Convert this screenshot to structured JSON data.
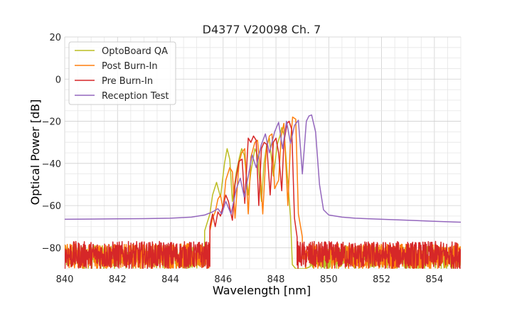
{
  "chart_data": {
    "type": "line",
    "title": "D4377 V20098 Ch. 7",
    "xlabel": "Wavelength [nm]",
    "ylabel": "Optical Power [dB]",
    "xlim": [
      840,
      855
    ],
    "ylim": [
      -90,
      20
    ],
    "xticks": [
      840,
      842,
      844,
      846,
      848,
      850,
      852,
      854
    ],
    "yticks": [
      -80,
      -60,
      -40,
      -20,
      0,
      20
    ],
    "xtick_labels": [
      "840",
      "842",
      "844",
      "846",
      "848",
      "850",
      "852",
      "854"
    ],
    "ytick_labels": [
      "−80",
      "−60",
      "−40",
      "−20",
      "0",
      "20"
    ],
    "grid": true,
    "legend_position": "top-left",
    "series": [
      {
        "name": "OptoBoard QA",
        "color": "#bcbd22",
        "noise": {
          "x_start": 840.0,
          "x_end": 855.0,
          "gap": [
            845.3,
            849.3
          ],
          "base": -90,
          "max": -79
        },
        "x": [
          845.3,
          845.5,
          845.6,
          845.75,
          845.9,
          846.05,
          846.15,
          846.25,
          846.35,
          846.5,
          846.62,
          846.7,
          846.8,
          846.95,
          847.05,
          847.13,
          847.2,
          847.3,
          847.45,
          847.55,
          847.65,
          847.75,
          847.9,
          848.05,
          848.15,
          848.22,
          848.32,
          848.45,
          848.55,
          848.62,
          848.75,
          848.9,
          849.1,
          849.3
        ],
        "values": [
          -72,
          -64,
          -55,
          -49,
          -56,
          -40,
          -33,
          -38,
          -58,
          -44,
          -37,
          -33,
          -36,
          -55,
          -44,
          -38,
          -33,
          -36,
          -58,
          -40,
          -31,
          -28,
          -46,
          -31,
          -27,
          -23,
          -27,
          -49,
          -65,
          -88,
          -90,
          -90,
          -90,
          -89
        ]
      },
      {
        "name": "Post Burn-In",
        "color": "#ff7f0e",
        "noise": {
          "x_start": 840.0,
          "x_end": 855.0,
          "gap": [
            845.5,
            849.0
          ],
          "base": -90,
          "max": -78
        },
        "x": [
          845.5,
          845.6,
          845.7,
          845.8,
          845.9,
          846.0,
          846.1,
          846.25,
          846.35,
          846.45,
          846.6,
          846.7,
          846.82,
          846.95,
          847.05,
          847.2,
          847.3,
          847.4,
          847.5,
          847.63,
          847.75,
          847.85,
          847.95,
          848.1,
          848.2,
          848.3,
          848.45,
          848.55,
          848.63,
          848.75,
          848.85,
          849.0
        ],
        "values": [
          -72,
          -66,
          -63,
          -57,
          -55,
          -62,
          -48,
          -42,
          -44,
          -66,
          -40,
          -35,
          -33,
          -64,
          -37,
          -30,
          -29,
          -42,
          -64,
          -34,
          -27,
          -26,
          -52,
          -48,
          -27,
          -21,
          -60,
          -30,
          -18,
          -19,
          -64,
          -75
        ]
      },
      {
        "name": "Pre Burn-In",
        "color": "#d62728",
        "noise": {
          "x_start": 840.0,
          "x_end": 855.0,
          "gap": [
            845.5,
            848.8
          ],
          "base": -90,
          "max": -77
        },
        "x": [
          845.5,
          845.6,
          845.7,
          845.8,
          845.9,
          846.0,
          846.1,
          846.2,
          846.35,
          846.45,
          846.6,
          846.72,
          846.82,
          846.95,
          847.05,
          847.15,
          847.25,
          847.35,
          847.45,
          847.55,
          847.65,
          847.78,
          847.9,
          848.0,
          848.1,
          848.22,
          848.3,
          848.42,
          848.5,
          848.6,
          848.7,
          848.8
        ],
        "values": [
          -70,
          -64,
          -70,
          -63,
          -65,
          -60,
          -55,
          -58,
          -67,
          -50,
          -39,
          -38,
          -59,
          -28,
          -30,
          -27,
          -29,
          -60,
          -33,
          -30,
          -31,
          -55,
          -30,
          -28,
          -35,
          -53,
          -30,
          -21,
          -20,
          -24,
          -66,
          -75
        ]
      },
      {
        "name": "Reception Test",
        "color": "#9467bd",
        "noise": null,
        "x": [
          840.0,
          841.0,
          842.0,
          843.0,
          844.0,
          844.8,
          845.3,
          845.6,
          845.8,
          845.95,
          846.1,
          846.3,
          846.5,
          846.65,
          846.8,
          846.95,
          847.1,
          847.25,
          847.45,
          847.6,
          847.75,
          847.95,
          848.1,
          848.25,
          848.4,
          848.55,
          848.7,
          848.85,
          849.0,
          849.15,
          849.25,
          849.35,
          849.5,
          849.65,
          849.8,
          850.0,
          850.5,
          851.0,
          852.0,
          853.0,
          854.0,
          855.0
        ],
        "values": [
          -66.5,
          -66.4,
          -66.3,
          -66.2,
          -66.0,
          -65.5,
          -64.5,
          -63.0,
          -61.5,
          -64.0,
          -58.0,
          -64.0,
          -52.0,
          -47.0,
          -56.0,
          -46.0,
          -36.0,
          -42.0,
          -31.0,
          -26.0,
          -35.0,
          -25.0,
          -20.5,
          -33.0,
          -20.0,
          -30.5,
          -22.0,
          -19.5,
          -45.0,
          -20.0,
          -17.5,
          -17.0,
          -25.0,
          -50.0,
          -62.0,
          -64.5,
          -65.5,
          -66.0,
          -66.5,
          -67.0,
          -67.5,
          -67.9
        ]
      }
    ]
  }
}
